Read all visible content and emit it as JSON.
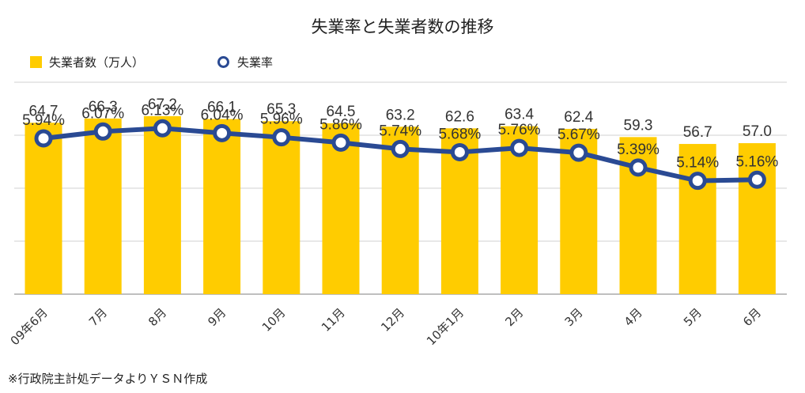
{
  "title": "失業率と失業者数の推移",
  "legend": [
    {
      "label": "失業者数（万人）",
      "kind": "bar",
      "color": "#FFCC00"
    },
    {
      "label": "失業率",
      "kind": "line-marker",
      "color": "#2A4A93"
    }
  ],
  "source": "※行政院主計処データよりＹＳＮ作成",
  "chart_data": {
    "type": "bar",
    "categories": [
      "09年6月",
      "7月",
      "8月",
      "9月",
      "10月",
      "11月",
      "12月",
      "10年1月",
      "2月",
      "3月",
      "4月",
      "5月",
      "6月"
    ],
    "series": [
      {
        "name": "失業者数（万人）",
        "type": "bar",
        "color": "#FFCC00",
        "values": [
          64.7,
          66.3,
          67.2,
          66.1,
          65.3,
          64.5,
          63.2,
          62.6,
          63.4,
          62.4,
          59.3,
          56.7,
          57.0
        ],
        "labels": [
          "64.7",
          "66.3",
          "67.2",
          "66.1",
          "65.3",
          "64.5",
          "63.2",
          "62.6",
          "63.4",
          "62.4",
          "59.3",
          "56.7",
          "57.0"
        ]
      },
      {
        "name": "失業率",
        "type": "line",
        "color": "#2A4A93",
        "values": [
          5.94,
          6.07,
          6.13,
          6.04,
          5.96,
          5.86,
          5.74,
          5.68,
          5.76,
          5.67,
          5.39,
          5.14,
          5.16
        ],
        "labels": [
          "5.94%",
          "6.07%",
          "6.13%",
          "6.04%",
          "5.96%",
          "5.86%",
          "5.74%",
          "5.68%",
          "5.76%",
          "5.67%",
          "5.39%",
          "5.14%",
          "5.16%"
        ]
      }
    ],
    "bar_axis": {
      "min": 0,
      "max": 80
    },
    "rate_axis": {
      "min": 3,
      "max": 7
    },
    "grid": true,
    "legend_position": "top-left"
  }
}
